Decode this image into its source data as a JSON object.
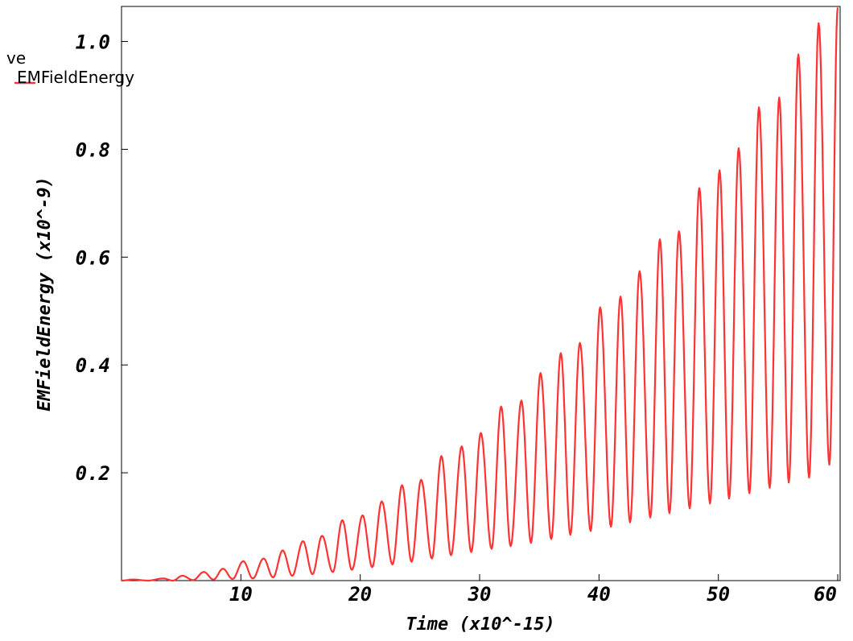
{
  "legend": {
    "title": "ve",
    "series_label": "EMFieldEnergy"
  },
  "chart_data": {
    "type": "line",
    "xlabel": "Time (x10^-15)",
    "ylabel": "EMFieldEnergy (x10^-9)",
    "xlim": [
      0,
      60.2
    ],
    "ylim": [
      0,
      1.065
    ],
    "x_ticks": [
      10,
      20,
      30,
      40,
      50,
      60
    ],
    "y_ticks": [
      0.2,
      0.4,
      0.6,
      0.8,
      1.0
    ],
    "x_tick_labels": [
      "10",
      "20",
      "30",
      "40",
      "50",
      "60"
    ],
    "y_tick_labels": [
      "0.2",
      "0.4",
      "0.6",
      "0.8",
      "1.0"
    ],
    "grid": false,
    "legend_position": "top-left",
    "line_color": "#ff3333",
    "series": [
      {
        "name": "EMFieldEnergy",
        "oscillation": {
          "description_values": "peak/trough envelope in data units",
          "peaks": [
            [
              1.0,
              0.002
            ],
            [
              3.5,
              0.004
            ],
            [
              5.1,
              0.009
            ],
            [
              6.9,
              0.016
            ],
            [
              8.5,
              0.022
            ],
            [
              10.2,
              0.036
            ],
            [
              11.9,
              0.041
            ],
            [
              13.5,
              0.056
            ],
            [
              15.2,
              0.073
            ],
            [
              16.8,
              0.083
            ],
            [
              18.5,
              0.112
            ],
            [
              20.2,
              0.121
            ],
            [
              21.8,
              0.147
            ],
            [
              23.5,
              0.177
            ],
            [
              25.1,
              0.187
            ],
            [
              26.8,
              0.231
            ],
            [
              28.5,
              0.249
            ],
            [
              30.1,
              0.274
            ],
            [
              31.8,
              0.323
            ],
            [
              33.5,
              0.334
            ],
            [
              35.1,
              0.385
            ],
            [
              36.8,
              0.422
            ],
            [
              38.4,
              0.441
            ],
            [
              40.1,
              0.507
            ],
            [
              41.8,
              0.527
            ],
            [
              43.4,
              0.574
            ],
            [
              45.1,
              0.633
            ],
            [
              46.7,
              0.648
            ],
            [
              48.4,
              0.728
            ],
            [
              50.1,
              0.761
            ],
            [
              51.7,
              0.802
            ],
            [
              53.4,
              0.878
            ],
            [
              55.1,
              0.896
            ],
            [
              56.7,
              0.976
            ],
            [
              58.4,
              1.034
            ],
            [
              60.0,
              1.063
            ]
          ],
          "troughs": [
            [
              2.2,
              0.0
            ],
            [
              4.3,
              0.0
            ],
            [
              6.0,
              0.001
            ],
            [
              7.7,
              0.002
            ],
            [
              9.3,
              0.003
            ],
            [
              11.0,
              0.004
            ],
            [
              12.7,
              0.006
            ],
            [
              14.3,
              0.009
            ],
            [
              16.0,
              0.012
            ],
            [
              17.7,
              0.016
            ],
            [
              19.3,
              0.02
            ],
            [
              21.0,
              0.025
            ],
            [
              22.7,
              0.03
            ],
            [
              24.3,
              0.035
            ],
            [
              26.0,
              0.041
            ],
            [
              27.6,
              0.047
            ],
            [
              29.3,
              0.053
            ],
            [
              31.0,
              0.059
            ],
            [
              32.6,
              0.064
            ],
            [
              34.3,
              0.07
            ],
            [
              36.0,
              0.077
            ],
            [
              37.6,
              0.085
            ],
            [
              39.3,
              0.092
            ],
            [
              41.0,
              0.1
            ],
            [
              42.6,
              0.108
            ],
            [
              44.3,
              0.117
            ],
            [
              45.9,
              0.125
            ],
            [
              47.6,
              0.134
            ],
            [
              49.3,
              0.143
            ],
            [
              50.9,
              0.152
            ],
            [
              52.6,
              0.162
            ],
            [
              54.3,
              0.172
            ],
            [
              55.9,
              0.182
            ],
            [
              57.6,
              0.191
            ],
            [
              59.3,
              0.215
            ]
          ]
        }
      }
    ]
  }
}
